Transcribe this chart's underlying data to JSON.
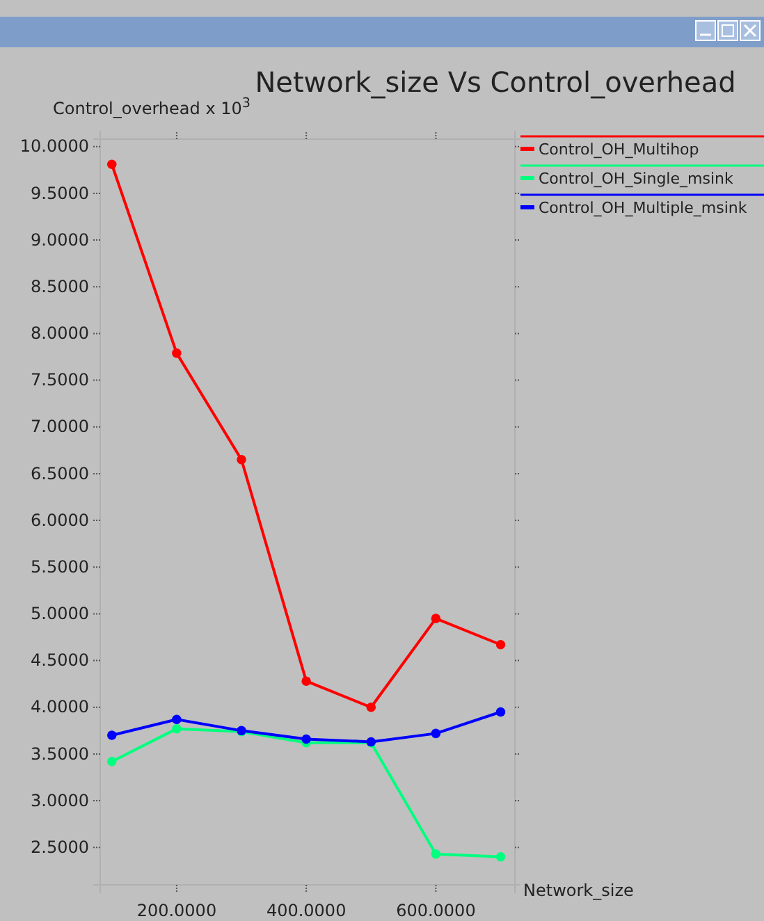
{
  "chart_data": {
    "type": "line",
    "title": "Network_size Vs Control_overhead",
    "ylabel": "Control_overhead x 10$^{3}$",
    "xlabel": "Network_size",
    "x": [
      100,
      200,
      300,
      400,
      500,
      600,
      700
    ],
    "series": [
      {
        "name": "Control_OH_Multihop",
        "color": "#ff0000",
        "values": [
          9.81,
          7.79,
          6.65,
          4.28,
          4.0,
          4.95,
          4.67
        ]
      },
      {
        "name": "Control_OH_Single_msink",
        "color": "#00ff7f",
        "values": [
          3.42,
          3.77,
          3.74,
          3.62,
          3.62,
          2.43,
          2.4
        ]
      },
      {
        "name": "Control_OH_Multiple_msink",
        "color": "#0000ff",
        "values": [
          3.7,
          3.87,
          3.75,
          3.66,
          3.63,
          3.72,
          3.95
        ]
      }
    ],
    "xlim": [
      82,
      722
    ],
    "ylim": [
      2.1,
      10.08
    ],
    "xticks": [
      {
        "value": 200,
        "label": "200.0000"
      },
      {
        "value": 400,
        "label": "400.0000"
      },
      {
        "value": 600,
        "label": "600.0000"
      }
    ],
    "yticks": [
      {
        "value": 2.5,
        "label": "2.5000"
      },
      {
        "value": 3,
        "label": "3.0000"
      },
      {
        "value": 3.5,
        "label": "3.5000"
      },
      {
        "value": 4,
        "label": "4.0000"
      },
      {
        "value": 4.5,
        "label": "4.5000"
      },
      {
        "value": 5,
        "label": "5.0000"
      },
      {
        "value": 5.5,
        "label": "5.5000"
      },
      {
        "value": 6,
        "label": "6.0000"
      },
      {
        "value": 6.5,
        "label": "6.5000"
      },
      {
        "value": 7,
        "label": "7.0000"
      },
      {
        "value": 7.5,
        "label": "7.5000"
      },
      {
        "value": 8,
        "label": "8.0000"
      },
      {
        "value": 8.5,
        "label": "8.5000"
      },
      {
        "value": 9,
        "label": "9.0000"
      },
      {
        "value": 9.5,
        "label": "9.5000"
      },
      {
        "value": 10,
        "label": "10.0000"
      }
    ],
    "legend": "top right",
    "marker": "circle",
    "line_style": "solid",
    "grid": false
  }
}
